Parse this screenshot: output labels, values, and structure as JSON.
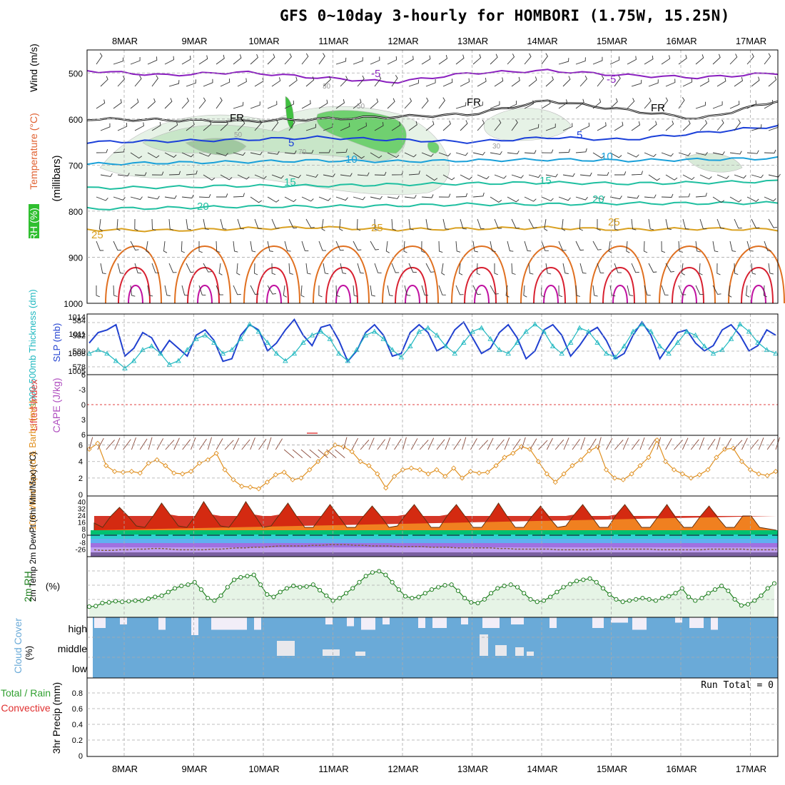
{
  "title": "GFS 0~10day 3-hourly for HOMBORI (1.75W, 15.25N)",
  "dates": [
    "8MAR",
    "9MAR",
    "10MAR",
    "11MAR",
    "12MAR",
    "13MAR",
    "14MAR",
    "15MAR",
    "16MAR",
    "17MAR"
  ],
  "colors": {
    "rh_fill": "#2fbf2f",
    "temp_neg": "#8a1fbf",
    "temp_cold": "#1a3fd9",
    "temp_cool": "#19a0d9",
    "temp_mild": "#1fbfa0",
    "temp_warm": "#d9a020",
    "temp_hot": "#d92020",
    "slp": "#2040d0",
    "thickness": "#20b8c0",
    "wind10m": "#e09020",
    "rh2m": "#208020",
    "cloud": "#6aaad8"
  },
  "chart_data": [
    {
      "type": "heatmap",
      "name": "upper-air",
      "ylabel_parts": [
        "RH (%)",
        "Temperature (°C)",
        "Wind (m/s)"
      ],
      "ylabel_right": "(millibars)",
      "y_ticks": [
        500,
        600,
        700,
        800,
        900,
        1000
      ],
      "ylim": [
        1000,
        450
      ],
      "contour_labels": [
        "-5",
        "FR",
        "5",
        "10",
        "15",
        "20",
        "25",
        "30",
        "50",
        "70"
      ],
      "isotherms": [
        {
          "label": "-5",
          "pressure": [
            495,
            505,
            498,
            510,
            520,
            500,
            495,
            505,
            510,
            500
          ],
          "color": "temp_neg"
        },
        {
          "label": "FR",
          "pressure": [
            600,
            602,
            605,
            600,
            595,
            590,
            560,
            580,
            600,
            560
          ],
          "color": "black"
        },
        {
          "label": "5",
          "pressure": [
            650,
            648,
            645,
            640,
            645,
            650,
            640,
            645,
            630,
            615
          ],
          "color": "temp_cold"
        },
        {
          "label": "10",
          "pressure": [
            698,
            695,
            693,
            690,
            692,
            690,
            688,
            690,
            688,
            685
          ],
          "color": "temp_cool"
        },
        {
          "label": "15",
          "pressure": [
            750,
            748,
            745,
            745,
            742,
            740,
            738,
            740,
            738,
            735
          ],
          "color": "temp_mild"
        },
        {
          "label": "20",
          "pressure": [
            795,
            793,
            790,
            790,
            788,
            785,
            785,
            783,
            783,
            782
          ],
          "color": "temp_mild"
        },
        {
          "label": "25",
          "pressure": [
            840,
            842,
            838,
            835,
            840,
            838,
            836,
            840,
            838,
            840
          ],
          "color": "temp_warm"
        }
      ]
    },
    {
      "type": "line",
      "name": "slp-thickness",
      "ylabel_left": "1000-500mb Thickness (dm)",
      "ylabel_right": "SLP (mb)",
      "left_ticks": [
        578,
        580,
        582,
        584
      ],
      "right_ticks": [
        1005,
        1008,
        1011,
        1014
      ],
      "series": [
        {
          "name": "SLP",
          "axis": "right",
          "values": [
            1009.5,
            1011.5,
            1012,
            1013,
            1007,
            1008.5,
            1011.5,
            1010.5,
            1007.5,
            1010,
            1008.5,
            1007,
            1011,
            1012,
            1010,
            1006,
            1006.5,
            1011,
            1013,
            1012,
            1008,
            1009.5,
            1012,
            1014,
            1011,
            1009,
            1012.5,
            1013,
            1010,
            1006,
            1008,
            1011.5,
            1013,
            1011,
            1007,
            1007.5,
            1011.5,
            1013,
            1011.5,
            1008,
            1009,
            1012,
            1013.5,
            1010.5,
            1007.5,
            1008.5,
            1011.5,
            1013,
            1010.5,
            1006.5,
            1008,
            1012,
            1013,
            1011,
            1007,
            1009,
            1011.5,
            1012.5,
            1010,
            1006.5,
            1007.5,
            1011,
            1013.5,
            1011,
            1006.5,
            1009,
            1011.5,
            1012,
            1009.5,
            1008,
            1009,
            1012,
            1013,
            1011,
            1008,
            1009,
            1012,
            1011
          ]
        },
        {
          "name": "Thickness",
          "axis": "left",
          "values": [
            580,
            580.5,
            580,
            579,
            578,
            579,
            580.5,
            581,
            580,
            578.5,
            579,
            580.5,
            582,
            582.5,
            581.5,
            580,
            580.5,
            582,
            584,
            583,
            581.5,
            580,
            579,
            580,
            581.5,
            582.5,
            583,
            582,
            580,
            579,
            580.5,
            582.5,
            583,
            582,
            580.5,
            579.5,
            581,
            583,
            583.5,
            582.5,
            581,
            580,
            581.5,
            583,
            583.5,
            582,
            580.5,
            580,
            581.5,
            583,
            584,
            583,
            581,
            580,
            581.5,
            583.5,
            583,
            581.5,
            580,
            579.5,
            581,
            583,
            584,
            583,
            581,
            580,
            581.5,
            583,
            582.5,
            581,
            580,
            580.5,
            582,
            584,
            583,
            581.5,
            580.5,
            580
          ]
        }
      ]
    },
    {
      "type": "line",
      "name": "cape-li",
      "ylabel_left": "Lifted Index",
      "ylabel_right": "CAPE (J/kg)",
      "y_ticks": [
        -6,
        -3,
        0,
        3,
        6
      ],
      "series": [
        {
          "name": "Lifted Index",
          "values": []
        }
      ]
    },
    {
      "type": "line",
      "name": "wind10m",
      "ylabel": "10m Wind Speed & Barbs (m/s)",
      "y_ticks": [
        0,
        2,
        4,
        6
      ],
      "ylim": [
        0,
        7
      ],
      "series": [
        {
          "name": "10m Wind Speed",
          "values": [
            5.5,
            6.2,
            3.5,
            2.8,
            2.7,
            2.8,
            2.6,
            3.8,
            4.2,
            3.5,
            2.6,
            2.5,
            2.8,
            3.8,
            4.2,
            5.0,
            3.0,
            1.8,
            1.0,
            0.9,
            0.7,
            1.5,
            2.4,
            2.7,
            1.8,
            2.0,
            3.0,
            4.0,
            5.0,
            6.0,
            5.8,
            5.2,
            4.0,
            3.5,
            2.5,
            0.8,
            2.2,
            3.0,
            3.2,
            3.0,
            2.5,
            3.0,
            2.2,
            3.2,
            2.0,
            2.8,
            2.6,
            2.7,
            3.5,
            4.5,
            5.0,
            5.8,
            5.5,
            4.0,
            2.5,
            1.5,
            2.5,
            3.5,
            4.2,
            5.3,
            5.8,
            3.0,
            2.0,
            1.8,
            2.5,
            3.5,
            4.5,
            6.6,
            4.0,
            3.0,
            2.5,
            2.0,
            2.4,
            3.0,
            4.5,
            5.5,
            5.6,
            4.0,
            3.0,
            2.5,
            2.3,
            2.8
          ]
        }
      ]
    },
    {
      "type": "area",
      "name": "temp-dewpt",
      "ylabel": "2m Temp 2m DewPt (6hr Min/Max) (°C)",
      "y_ticks": [
        40,
        32,
        24,
        16,
        8,
        0,
        -8,
        -26
      ],
      "series": [
        {
          "name": "2m Temp",
          "values": [
            25,
            22,
            30,
            36,
            30,
            23,
            22,
            30,
            39,
            31,
            23,
            22,
            30,
            40,
            31,
            23,
            22,
            30,
            40,
            31,
            22,
            23,
            31,
            39,
            30,
            22,
            22,
            30,
            38,
            30,
            22,
            22,
            30,
            37,
            30,
            22,
            23,
            31,
            38,
            30,
            22,
            22,
            31,
            38,
            30,
            22,
            22,
            30,
            39,
            30,
            22,
            22,
            30,
            37,
            29,
            22,
            23,
            31,
            38,
            30,
            22,
            22,
            31,
            38,
            30,
            22,
            22,
            30,
            38,
            29,
            22,
            22,
            30,
            37,
            29,
            22,
            22,
            30,
            30,
            22,
            21,
            20
          ]
        },
        {
          "name": "2m DewPt",
          "values": [
            -6,
            -7,
            -7,
            -6,
            -6,
            -5,
            -5,
            -4,
            -4,
            -5,
            -6,
            -6,
            -6,
            -6,
            -5,
            -5,
            -4,
            -3,
            -3,
            -2,
            -2,
            -1,
            0,
            0,
            0,
            0,
            1,
            1,
            2,
            2,
            2,
            1,
            1,
            0,
            0,
            0,
            -1,
            -1,
            -1,
            -1,
            -2,
            -2,
            -2,
            -3,
            -3,
            -3,
            -3,
            -3,
            -4,
            -4,
            -5,
            -5,
            -5,
            -5,
            -5,
            -6,
            -6,
            -6,
            -6,
            -6,
            -5,
            -5,
            -5,
            -5,
            -5,
            -5,
            -5,
            -6,
            -6,
            -6,
            -6,
            -6,
            -6,
            -5,
            -5,
            -5,
            -5,
            -5,
            -6,
            -6,
            -6,
            -6
          ]
        }
      ]
    },
    {
      "type": "area",
      "name": "rh2m",
      "ylabel": "2m RH",
      "unit": "(%)",
      "ylim": [
        0,
        100
      ],
      "series": [
        {
          "name": "2m RH",
          "values": [
            8,
            9,
            14,
            15,
            17,
            16,
            17,
            18,
            18,
            21,
            24,
            26,
            32,
            38,
            42,
            44,
            48,
            36,
            22,
            18,
            26,
            40,
            52,
            56,
            58,
            60,
            44,
            28,
            24,
            32,
            38,
            42,
            40,
            41,
            44,
            35,
            26,
            18,
            22,
            30,
            38,
            48,
            58,
            64,
            66,
            60,
            48,
            36,
            25,
            22,
            24,
            30,
            36,
            40,
            43,
            44,
            34,
            22,
            15,
            14,
            20,
            30,
            38,
            42,
            44,
            40,
            30,
            20,
            16,
            18,
            24,
            32,
            40,
            45,
            50,
            52,
            54,
            48,
            38,
            28,
            20,
            16,
            18,
            20,
            22,
            20,
            18,
            22,
            25,
            30,
            38,
            24,
            18,
            22,
            30,
            36,
            42,
            34,
            20,
            10,
            12,
            18,
            26,
            38,
            46
          ]
        }
      ]
    },
    {
      "type": "bar",
      "name": "cloud-cover",
      "ylabel": "Cloud Cover",
      "unit": "(%)",
      "categories": [
        "high",
        "middle",
        "low"
      ]
    },
    {
      "type": "bar",
      "name": "precip",
      "ylabel_parts": [
        "3hr Precip (mm)",
        "Total / Rain",
        "Convective"
      ],
      "y_ticks": [
        0,
        0.2,
        0.4,
        0.6,
        0.8
      ],
      "ylim": [
        0,
        1
      ],
      "run_total": "Run Total = 0",
      "series": [
        {
          "name": "Total",
          "values": []
        }
      ]
    }
  ]
}
